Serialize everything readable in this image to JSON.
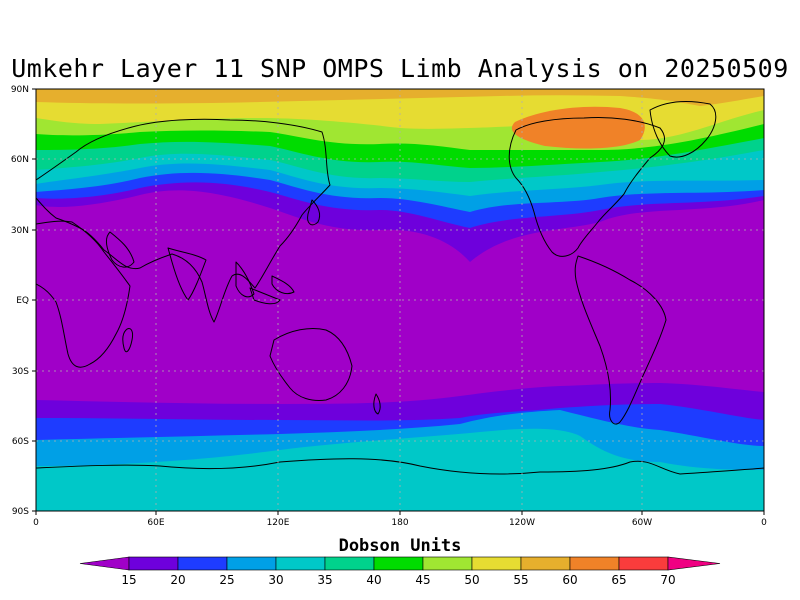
{
  "title": "Umkehr Layer 11 SNP OMPS Limb Analysis on 20250509",
  "map": {
    "lat_ticks": [
      "90N",
      "60N",
      "30N",
      "EQ",
      "30S",
      "60S",
      "90S"
    ],
    "lon_ticks": [
      "0",
      "60E",
      "120E",
      "180",
      "120W",
      "60W",
      "0"
    ]
  },
  "colorbar": {
    "title": "Dobson Units",
    "labels": [
      "15",
      "20",
      "25",
      "30",
      "35",
      "40",
      "45",
      "50",
      "55",
      "60",
      "65",
      "70"
    ],
    "colors": [
      "#a000c8",
      "#6e00dc",
      "#1e3cff",
      "#00a0e6",
      "#00c8c8",
      "#00d28c",
      "#00dc00",
      "#a0e632",
      "#e6dc32",
      "#e6af2d",
      "#f08228",
      "#fa3c3c",
      "#f00082"
    ]
  },
  "chart_data": {
    "type": "heatmap",
    "title": "Umkehr Layer 11 SNP OMPS Limb Analysis on 20250509",
    "x_ticks": [
      "0",
      "60E",
      "120E",
      "180",
      "120W",
      "60W",
      "0"
    ],
    "y_ticks": [
      "90N",
      "60N",
      "30N",
      "EQ",
      "30S",
      "60S",
      "90S"
    ],
    "xlim": [
      0,
      360
    ],
    "ylim": [
      -90,
      90
    ],
    "legend_title": "Dobson Units",
    "legend_levels": [
      15,
      20,
      25,
      30,
      35,
      40,
      45,
      50,
      55,
      60,
      65,
      70
    ],
    "approx_zonal_profile": [
      {
        "lat": 85,
        "value": 57
      },
      {
        "lat": 70,
        "value": 53
      },
      {
        "lat": 60,
        "value": 44
      },
      {
        "lat": 50,
        "value": 33
      },
      {
        "lat": 40,
        "value": 23
      },
      {
        "lat": 30,
        "value": 17
      },
      {
        "lat": 0,
        "value": 14
      },
      {
        "lat": -30,
        "value": 15
      },
      {
        "lat": -45,
        "value": 19
      },
      {
        "lat": -55,
        "value": 24
      },
      {
        "lat": -65,
        "value": 29
      },
      {
        "lat": -80,
        "value": 31
      }
    ],
    "grid": true
  }
}
